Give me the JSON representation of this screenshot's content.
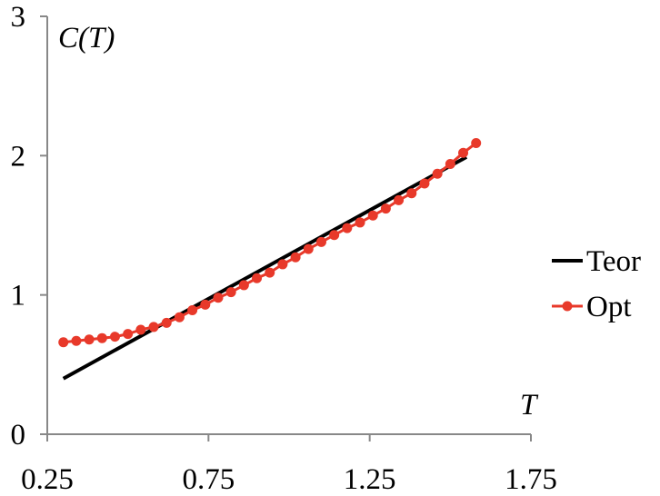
{
  "chart_data": {
    "type": "line",
    "xlabel": "T",
    "ylabel": "C(T)",
    "xlim": [
      0.25,
      1.75
    ],
    "ylim": [
      0,
      3
    ],
    "x_ticks": [
      "0.25",
      "0.75",
      "1.25",
      "1.75"
    ],
    "y_ticks": [
      "0",
      "1",
      "2",
      "3"
    ],
    "grid": false,
    "legend_position": "right",
    "series": [
      {
        "name": "Teor",
        "color": "#000000",
        "marker": "none",
        "x": [
          0.3,
          1.55
        ],
        "y": [
          0.4,
          1.99
        ]
      },
      {
        "name": "Opt",
        "color": "#e8392a",
        "marker": "circle",
        "x": [
          0.3,
          0.34,
          0.38,
          0.42,
          0.46,
          0.5,
          0.54,
          0.58,
          0.62,
          0.66,
          0.7,
          0.74,
          0.78,
          0.82,
          0.86,
          0.9,
          0.94,
          0.98,
          1.02,
          1.06,
          1.1,
          1.14,
          1.18,
          1.22,
          1.26,
          1.3,
          1.34,
          1.38,
          1.42,
          1.46,
          1.5,
          1.54,
          1.58
        ],
        "y": [
          0.66,
          0.67,
          0.68,
          0.69,
          0.7,
          0.72,
          0.75,
          0.77,
          0.8,
          0.84,
          0.89,
          0.93,
          0.98,
          1.02,
          1.07,
          1.12,
          1.16,
          1.22,
          1.27,
          1.33,
          1.38,
          1.43,
          1.48,
          1.52,
          1.57,
          1.62,
          1.68,
          1.73,
          1.8,
          1.87,
          1.94,
          2.02,
          2.09
        ]
      }
    ]
  }
}
